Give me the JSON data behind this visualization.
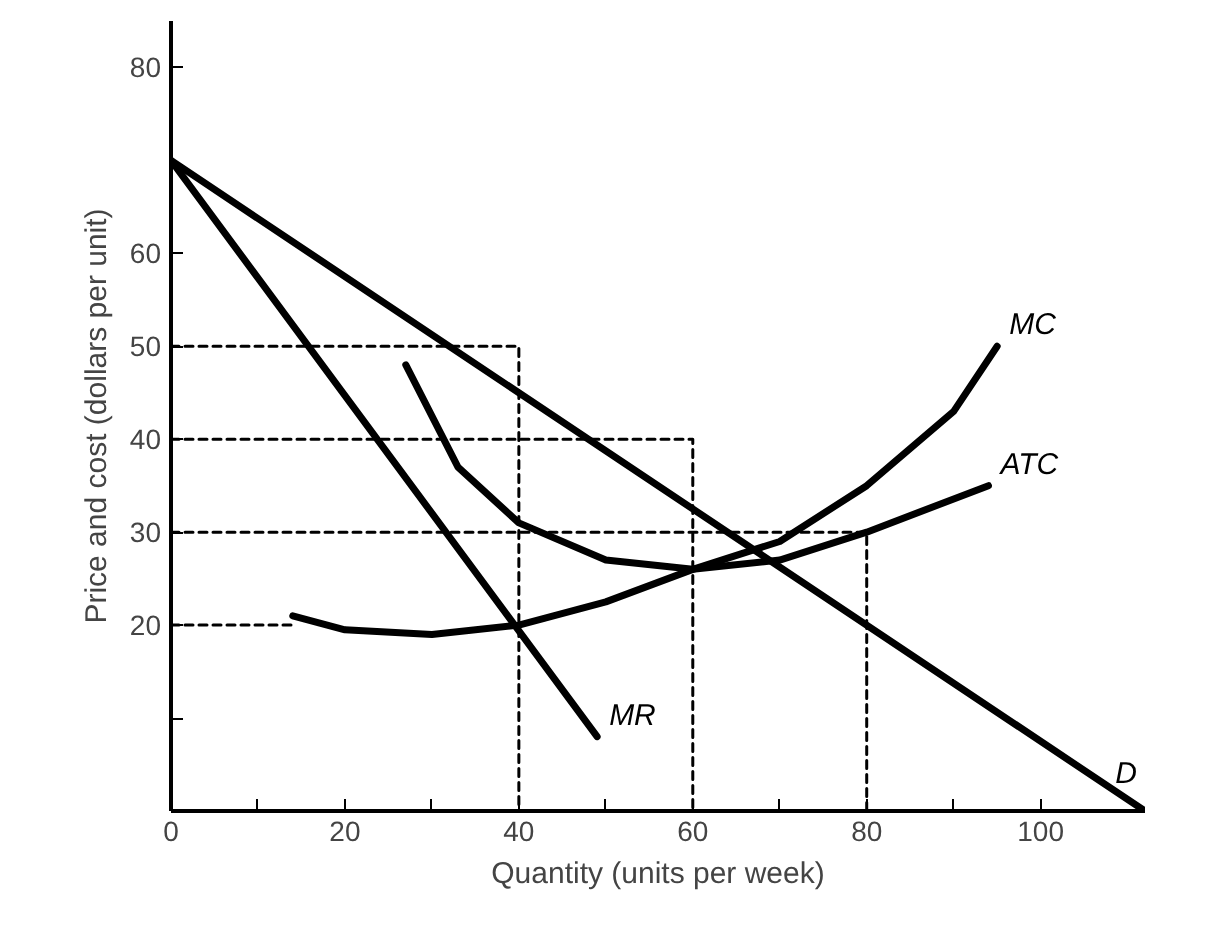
{
  "chart_data": {
    "type": "line",
    "xlabel": "Quantity (units per week)",
    "ylabel": "Price and cost (dollars per unit)",
    "xlim": [
      0,
      112
    ],
    "ylim": [
      0,
      85
    ],
    "xticks": [
      {
        "value": 0,
        "label": "0"
      },
      {
        "value": 10,
        "label": null
      },
      20,
      {
        "value": 30,
        "label": null
      },
      40,
      {
        "value": 50,
        "label": null
      },
      60,
      {
        "value": 70,
        "label": null
      },
      80,
      {
        "value": 90,
        "label": null
      },
      100
    ],
    "yticks": [
      {
        "value": 10,
        "label": null
      },
      20,
      30,
      40,
      50,
      60,
      80
    ],
    "grid": false,
    "marker": "none",
    "series": [
      {
        "name": "D",
        "color": "#000000",
        "x": [
          0,
          112
        ],
        "values": [
          70,
          0
        ]
      },
      {
        "name": "MR",
        "color": "#000000",
        "x": [
          0,
          49
        ],
        "values": [
          70,
          8
        ]
      },
      {
        "name": "MC",
        "color": "#000000",
        "x": [
          14,
          20,
          30,
          40,
          50,
          60,
          70,
          80,
          90,
          95
        ],
        "values": [
          21,
          19.5,
          19,
          20,
          22.5,
          26,
          29,
          35,
          43,
          50
        ]
      },
      {
        "name": "ATC",
        "color": "#000000",
        "x": [
          27,
          33,
          40,
          50,
          60,
          70,
          80,
          94
        ],
        "values": [
          48,
          37,
          31,
          27,
          26,
          27,
          30,
          35
        ]
      },
      {
        "color": "#000000",
        "line_style": "dashed",
        "x": [
          0,
          40,
          40
        ],
        "values": [
          50,
          50,
          0
        ]
      },
      {
        "color": "#000000",
        "line_style": "dashed",
        "x": [
          0,
          60,
          60
        ],
        "values": [
          40,
          40,
          0
        ]
      },
      {
        "color": "#000000",
        "line_style": "dashed",
        "x": [
          0,
          80,
          80
        ],
        "values": [
          30,
          30,
          0
        ]
      },
      {
        "color": "#000000",
        "line_style": "dashed",
        "x": [
          0,
          14
        ],
        "values": [
          20,
          20
        ]
      }
    ]
  }
}
